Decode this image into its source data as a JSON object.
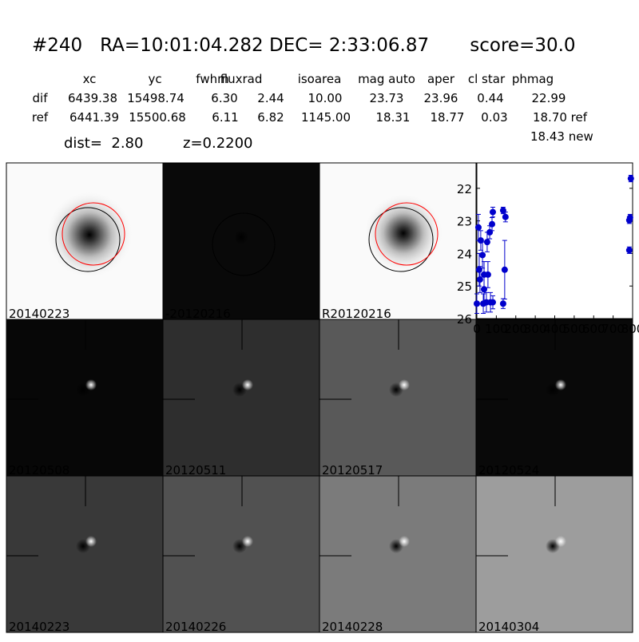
{
  "header": {
    "title": "#240   RA=10:01:04.282 DEC= 2:33:06.87       score=30.0"
  },
  "table": {
    "columns": [
      "xc",
      "yc",
      "fwhm",
      "fluxrad",
      "isoarea",
      "mag auto",
      "aper",
      "cl star",
      "phmag"
    ],
    "rows": [
      [
        "dif",
        "6439.38",
        "15498.74",
        "6.30",
        "2.44",
        "10.00",
        "23.73",
        "23.96",
        "0.44",
        "22.99"
      ],
      [
        "ref",
        "6441.39",
        "15500.68",
        "6.11",
        "6.82",
        "1145.00",
        "18.31",
        "18.77",
        "0.03",
        "18.70 ref"
      ]
    ],
    "extra": "18.43 new"
  },
  "dist": "dist=  2.80",
  "redshift": "z=0.2200",
  "stamps": [
    {
      "label": "20140223",
      "color": "#000000"
    },
    {
      "label": "-20120216",
      "color": "#000000"
    },
    {
      "label": "R20120216",
      "color": "#000000"
    },
    {
      "label": "20120508",
      "color": "#000000"
    },
    {
      "label": "20120511",
      "color": "#000000"
    },
    {
      "label": "20120517",
      "color": "#000000"
    },
    {
      "label": "20120524",
      "color": "#000000"
    },
    {
      "label": "20140223",
      "color": "#ff0000"
    },
    {
      "label": "20140226",
      "color": "#000000"
    },
    {
      "label": "20140228",
      "color": "#000000"
    },
    {
      "label": "20140304",
      "color": "#000000"
    }
  ],
  "chart_data": {
    "type": "errorbar",
    "x": [
      0,
      8,
      12,
      16,
      20,
      29,
      33,
      37,
      37,
      49,
      53,
      57,
      66,
      70,
      78,
      82,
      82,
      135,
      135,
      143,
      147,
      783,
      783,
      787,
      791
    ],
    "series": [
      {
        "color": "#0000cc",
        "values": [
          25.54,
          23.2,
          24.5,
          24.8,
          23.6,
          24.05,
          25.54,
          24.65,
          25.1,
          25.5,
          23.65,
          24.65,
          23.35,
          25.5,
          23.1,
          22.73,
          25.5,
          22.68,
          25.54,
          24.5,
          22.88,
          23.9,
          22.98,
          22.9,
          21.7
        ],
        "errors": [
          0.3,
          0.4,
          0.5,
          0.4,
          0.3,
          0.4,
          0.3,
          0.4,
          0.4,
          0.3,
          0.3,
          0.4,
          0.2,
          0.3,
          0.2,
          0.15,
          0.2,
          0.1,
          0.15,
          0.9,
          0.15,
          0.1,
          0.1,
          0.1,
          0.1
        ]
      }
    ],
    "xlim": [
      0,
      800
    ],
    "xticks": [
      0,
      100,
      200,
      300,
      400,
      500,
      600,
      700,
      800
    ],
    "ylim": [
      26,
      21.22
    ],
    "yticks": [
      22,
      23,
      24,
      25,
      26
    ]
  }
}
